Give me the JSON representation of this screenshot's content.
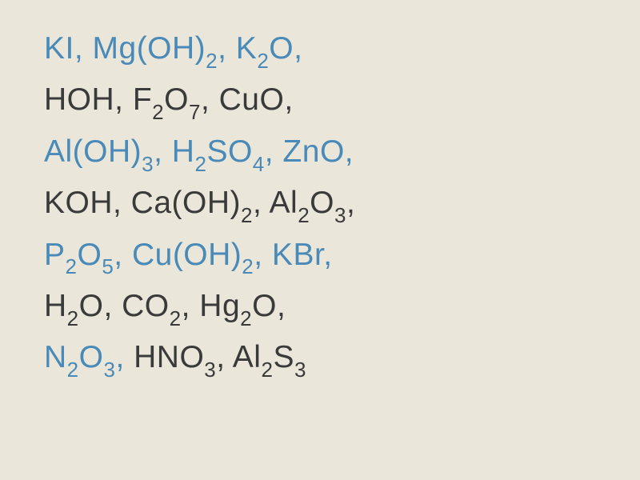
{
  "document": {
    "background_color": "#eae6da",
    "blue_color": "#4a8ab8",
    "dark_color": "#3a3a3a",
    "font_size": 39,
    "sub_font_size": 26,
    "line_height": 1.6,
    "lines": [
      {
        "segments": [
          {
            "color": "blue",
            "parts": [
              {
                "t": "KI,  Mg(OH)"
              },
              {
                "t": "2",
                "sub": true
              },
              {
                "t": ", K"
              },
              {
                "t": "2",
                "sub": true
              },
              {
                "t": "O,"
              }
            ]
          }
        ]
      },
      {
        "segments": [
          {
            "color": "dark",
            "parts": [
              {
                "t": "HOH,  F"
              },
              {
                "t": "2",
                "sub": true
              },
              {
                "t": "O"
              },
              {
                "t": "7",
                "sub": true
              },
              {
                "t": ",  CuO,"
              }
            ]
          }
        ]
      },
      {
        "segments": [
          {
            "color": "blue",
            "parts": [
              {
                "t": "Al(OH)"
              },
              {
                "t": "3",
                "sub": true
              },
              {
                "t": ",  H"
              },
              {
                "t": "2",
                "sub": true
              },
              {
                "t": "SO"
              },
              {
                "t": "4",
                "sub": true
              },
              {
                "t": ",  ZnO,"
              }
            ]
          }
        ]
      },
      {
        "segments": [
          {
            "color": "dark",
            "parts": [
              {
                "t": " KOH,  Ca(OH)"
              },
              {
                "t": "2",
                "sub": true
              },
              {
                "t": ",     Al"
              },
              {
                "t": "2",
                "sub": true
              },
              {
                "t": "O"
              },
              {
                "t": "3",
                "sub": true
              },
              {
                "t": ","
              }
            ]
          }
        ]
      },
      {
        "segments": [
          {
            "color": "blue",
            "parts": [
              {
                "t": " P"
              },
              {
                "t": "2",
                "sub": true
              },
              {
                "t": "O"
              },
              {
                "t": "5",
                "sub": true
              },
              {
                "t": ",  Cu(OH)"
              },
              {
                "t": "2",
                "sub": true
              },
              {
                "t": ",  KBr,"
              }
            ]
          }
        ]
      },
      {
        "segments": [
          {
            "color": "dark",
            "parts": [
              {
                "t": "H"
              },
              {
                "t": "2",
                "sub": true
              },
              {
                "t": "O,  CO"
              },
              {
                "t": "2",
                "sub": true
              },
              {
                "t": ",   Hg"
              },
              {
                "t": "2",
                "sub": true
              },
              {
                "t": "O,"
              }
            ]
          }
        ]
      },
      {
        "segments": [
          {
            "color": "blue",
            "parts": [
              {
                "t": " N"
              },
              {
                "t": "2",
                "sub": true
              },
              {
                "t": "O"
              },
              {
                "t": "3",
                "sub": true
              },
              {
                "t": ","
              }
            ]
          },
          {
            "color": "dark",
            "parts": [
              {
                "t": "  HNO"
              },
              {
                "t": "3",
                "sub": true
              },
              {
                "t": ",  Al"
              },
              {
                "t": "2",
                "sub": true
              },
              {
                "t": "S"
              },
              {
                "t": "3",
                "sub": true
              }
            ]
          }
        ]
      }
    ]
  }
}
